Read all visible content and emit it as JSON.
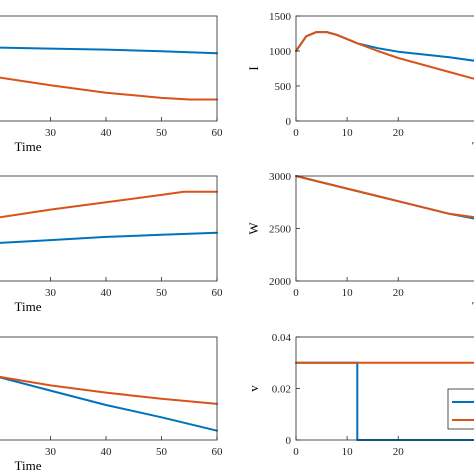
{
  "chart_data": [
    {
      "type": "line",
      "xlabel": "Time",
      "ylabel": "",
      "xticks": [
        "30",
        "40",
        "50",
        "60"
      ],
      "yticks": [],
      "xlim": [
        20,
        60
      ],
      "ylim": [
        0,
        1
      ],
      "series": [
        {
          "color": "#0072BD",
          "x": [
            20,
            30,
            40,
            50,
            60
          ],
          "y": [
            0.7,
            0.69,
            0.68,
            0.665,
            0.645
          ]
        },
        {
          "color": "#D95319",
          "x": [
            20,
            30,
            40,
            50,
            55,
            60
          ],
          "y": [
            0.42,
            0.34,
            0.27,
            0.22,
            0.205,
            0.205
          ]
        }
      ]
    },
    {
      "type": "line",
      "xlabel": "T",
      "ylabel": "I",
      "xticks": [
        "0",
        "10",
        "20"
      ],
      "yticks": [
        "0",
        "500",
        "1000",
        "1500"
      ],
      "xlim": [
        0,
        36
      ],
      "ylim": [
        0,
        1500
      ],
      "series": [
        {
          "color": "#0072BD",
          "x": [
            0,
            2,
            4,
            6,
            8,
            10,
            12,
            16,
            20,
            25,
            30,
            36
          ],
          "y": [
            1000,
            1210,
            1270,
            1270,
            1230,
            1170,
            1110,
            1040,
            990,
            950,
            910,
            850
          ]
        },
        {
          "color": "#D95319",
          "x": [
            0,
            2,
            4,
            6,
            8,
            10,
            12,
            16,
            20,
            25,
            30,
            36
          ],
          "y": [
            1000,
            1210,
            1270,
            1270,
            1230,
            1170,
            1110,
            1000,
            900,
            800,
            700,
            580
          ]
        }
      ]
    },
    {
      "type": "line",
      "xlabel": "Time",
      "ylabel": "",
      "xticks": [
        "30",
        "40",
        "50",
        "60"
      ],
      "yticks": [],
      "xlim": [
        20,
        60
      ],
      "ylim": [
        0,
        1
      ],
      "series": [
        {
          "color": "#0072BD",
          "x": [
            20,
            30,
            40,
            50,
            60
          ],
          "y": [
            0.36,
            0.39,
            0.42,
            0.44,
            0.46
          ]
        },
        {
          "color": "#D95319",
          "x": [
            20,
            30,
            40,
            50,
            54,
            60
          ],
          "y": [
            0.6,
            0.68,
            0.75,
            0.82,
            0.85,
            0.85
          ]
        }
      ]
    },
    {
      "type": "line",
      "xlabel": "T",
      "ylabel": "W",
      "xticks": [
        "0",
        "10",
        "20"
      ],
      "yticks": [
        "2000",
        "2500",
        "3000"
      ],
      "xlim": [
        0,
        36
      ],
      "ylim": [
        2000,
        3000
      ],
      "series": [
        {
          "color": "#0072BD",
          "x": [
            0,
            10,
            20,
            30,
            36
          ],
          "y": [
            3000,
            2880,
            2760,
            2640,
            2585
          ]
        },
        {
          "color": "#D95319",
          "x": [
            0,
            10,
            20,
            30,
            36
          ],
          "y": [
            3000,
            2880,
            2760,
            2640,
            2600
          ]
        }
      ]
    },
    {
      "type": "line",
      "xlabel": "Time",
      "ylabel": "",
      "xticks": [
        "30",
        "40",
        "50",
        "60"
      ],
      "yticks": [],
      "xlim": [
        20,
        60
      ],
      "ylim": [
        0,
        1
      ],
      "series": [
        {
          "color": "#0072BD",
          "x": [
            20,
            30,
            40,
            50,
            60
          ],
          "y": [
            0.62,
            0.48,
            0.34,
            0.22,
            0.09
          ]
        },
        {
          "color": "#D95319",
          "x": [
            20,
            30,
            40,
            50,
            60
          ],
          "y": [
            0.62,
            0.53,
            0.46,
            0.4,
            0.35
          ]
        }
      ]
    },
    {
      "type": "line",
      "xlabel": "",
      "ylabel": "v",
      "xticks": [
        "0",
        "10",
        "20"
      ],
      "yticks": [
        "0",
        "0.02",
        "0.04"
      ],
      "xlim": [
        0,
        36
      ],
      "ylim": [
        0,
        0.04
      ],
      "legend": "bottom-right",
      "series": [
        {
          "color": "#0072BD",
          "x": [
            0,
            12,
            12,
            36
          ],
          "y": [
            0.03,
            0.03,
            0,
            0
          ]
        },
        {
          "color": "#D95319",
          "x": [
            0,
            36
          ],
          "y": [
            0.03,
            0.03
          ]
        }
      ]
    }
  ]
}
